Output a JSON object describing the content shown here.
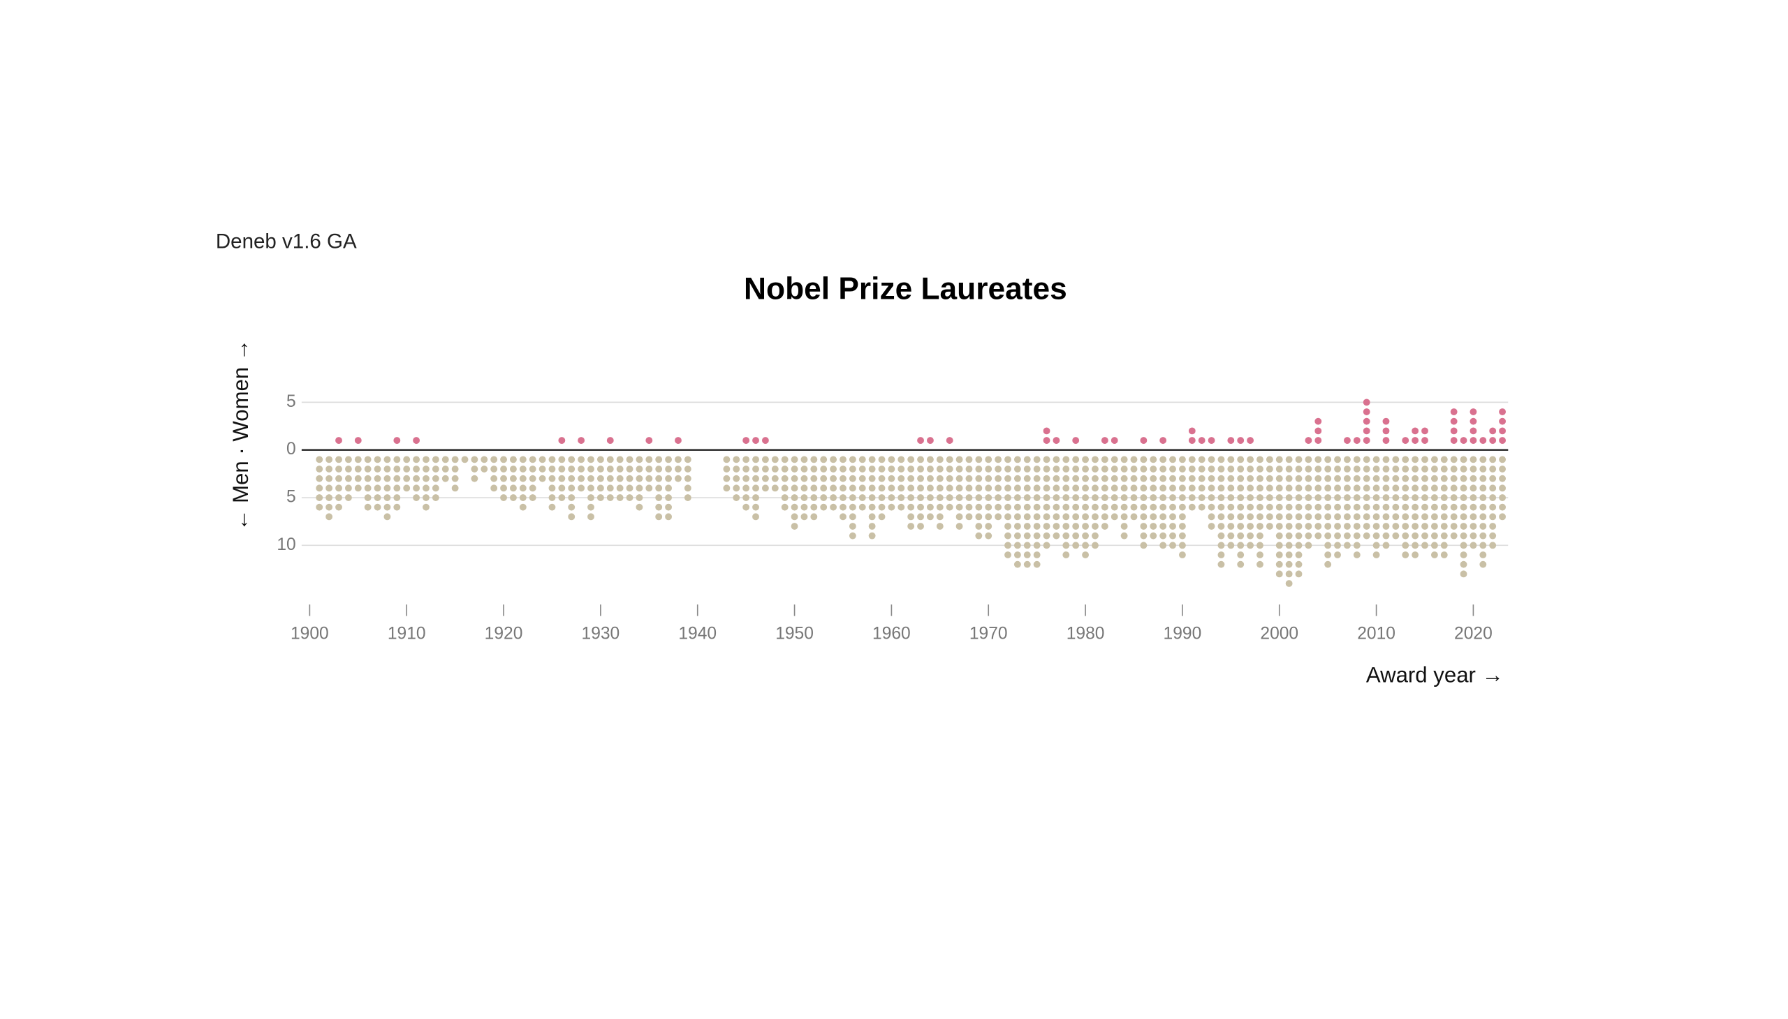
{
  "app_label": "Deneb v1.6 GA",
  "chart_data": {
    "type": "dot",
    "title": "Nobel Prize Laureates",
    "y_label": "← Men · Women →",
    "x_label": "Award year →",
    "x": [
      1901,
      1902,
      1903,
      1904,
      1905,
      1906,
      1907,
      1908,
      1909,
      1910,
      1911,
      1912,
      1913,
      1914,
      1915,
      1916,
      1917,
      1918,
      1919,
      1920,
      1921,
      1922,
      1923,
      1924,
      1925,
      1926,
      1927,
      1928,
      1929,
      1930,
      1931,
      1932,
      1933,
      1934,
      1935,
      1936,
      1937,
      1938,
      1939,
      1940,
      1941,
      1942,
      1943,
      1944,
      1945,
      1946,
      1947,
      1948,
      1949,
      1950,
      1951,
      1952,
      1953,
      1954,
      1955,
      1956,
      1957,
      1958,
      1959,
      1960,
      1961,
      1962,
      1963,
      1964,
      1965,
      1966,
      1967,
      1968,
      1969,
      1970,
      1971,
      1972,
      1973,
      1974,
      1975,
      1976,
      1977,
      1978,
      1979,
      1980,
      1981,
      1982,
      1983,
      1984,
      1985,
      1986,
      1987,
      1988,
      1989,
      1990,
      1991,
      1992,
      1993,
      1994,
      1995,
      1996,
      1997,
      1998,
      1999,
      2000,
      2001,
      2002,
      2003,
      2004,
      2005,
      2006,
      2007,
      2008,
      2009,
      2010,
      2011,
      2012,
      2013,
      2014,
      2015,
      2016,
      2017,
      2018,
      2019,
      2020,
      2021,
      2022,
      2023
    ],
    "series": [
      {
        "color": "#c9c0a6",
        "values": [
          -6,
          -7,
          -6,
          -5,
          -4,
          -6,
          -6,
          -7,
          -6,
          -4,
          -5,
          -6,
          -5,
          -3,
          -4,
          -1,
          -3,
          -2,
          -4,
          -5,
          -5,
          -6,
          -5,
          -3,
          -6,
          -5,
          -7,
          -4,
          -7,
          -5,
          -5,
          -5,
          -5,
          -6,
          -4,
          -7,
          -7,
          -3,
          -5,
          0,
          0,
          0,
          -4,
          -5,
          -6,
          -7,
          -4,
          -4,
          -6,
          -8,
          -7,
          -7,
          -6,
          -6,
          -7,
          -9,
          -6,
          -9,
          -7,
          -6,
          -6,
          -8,
          -8,
          -7,
          -8,
          -6,
          -8,
          -7,
          -9,
          -9,
          -7,
          -11,
          -12,
          -12,
          -12,
          -10,
          -9,
          -11,
          -10,
          -11,
          -10,
          -8,
          -7,
          -9,
          -7,
          -10,
          -9,
          -10,
          -10,
          -11,
          -6,
          -6,
          -8,
          -12,
          -10,
          -12,
          -10,
          -12,
          -8,
          -13,
          -14,
          -13,
          -10,
          -9,
          -12,
          -11,
          -10,
          -11,
          -9,
          -11,
          -10,
          -9,
          -11,
          -11,
          -10,
          -11,
          -11,
          -9,
          -13,
          -10,
          -12,
          -10,
          -7
        ]
      },
      {
        "color": "#d9718f",
        "values": [
          0,
          0,
          1,
          0,
          1,
          0,
          0,
          0,
          1,
          0,
          1,
          0,
          0,
          0,
          0,
          0,
          0,
          0,
          0,
          0,
          0,
          0,
          0,
          0,
          0,
          1,
          0,
          1,
          0,
          0,
          1,
          0,
          0,
          0,
          1,
          0,
          0,
          1,
          0,
          0,
          0,
          0,
          0,
          0,
          1,
          1,
          1,
          0,
          0,
          0,
          0,
          0,
          0,
          0,
          0,
          0,
          0,
          0,
          0,
          0,
          0,
          0,
          1,
          1,
          0,
          1,
          0,
          0,
          0,
          0,
          0,
          0,
          0,
          0,
          0,
          2,
          1,
          0,
          1,
          0,
          0,
          1,
          1,
          0,
          0,
          1,
          0,
          1,
          0,
          0,
          2,
          1,
          1,
          0,
          1,
          1,
          1,
          0,
          0,
          0,
          0,
          0,
          1,
          3,
          0,
          0,
          1,
          1,
          5,
          0,
          3,
          0,
          1,
          2,
          2,
          0,
          0,
          4,
          1,
          4,
          1,
          2,
          4
        ]
      }
    ],
    "xlim": [
      1900,
      2023
    ],
    "xticks": [
      1900,
      1910,
      1920,
      1930,
      1940,
      1950,
      1960,
      1970,
      1980,
      1990,
      2000,
      2010,
      2020
    ],
    "ylim": [
      -15,
      5
    ],
    "yticks": [
      {
        "value": -10,
        "label": "10"
      },
      {
        "value": -5,
        "label": "5"
      },
      0,
      5
    ],
    "grid": true
  }
}
